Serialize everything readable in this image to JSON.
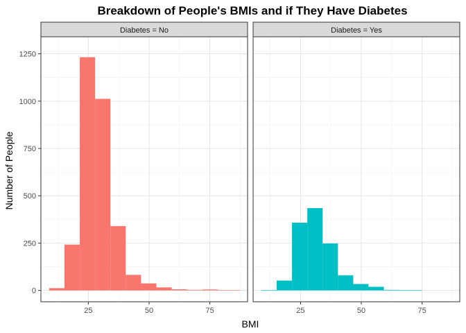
{
  "chart_data": {
    "type": "bar",
    "title": "Breakdown of People's BMIs and if They Have Diabetes",
    "xlabel": "BMI",
    "ylabel": "Number of People",
    "xlim": [
      5.5,
      90.5
    ],
    "ylim": [
      -60,
      1340
    ],
    "x_ticks": [
      25,
      50,
      75
    ],
    "y_ticks": [
      0,
      250,
      500,
      750,
      1000,
      1250
    ],
    "bin_width": 6.3,
    "grid": true,
    "panels": [
      {
        "strip_label": "Diabetes = No",
        "color": "#F8766D",
        "bins": [
          {
            "x0": 8.9,
            "x1": 15.2,
            "count": 12
          },
          {
            "x0": 15.2,
            "x1": 21.5,
            "count": 242
          },
          {
            "x0": 21.5,
            "x1": 27.8,
            "count": 1232
          },
          {
            "x0": 27.8,
            "x1": 34.1,
            "count": 1012
          },
          {
            "x0": 34.1,
            "x1": 40.4,
            "count": 340
          },
          {
            "x0": 40.4,
            "x1": 46.7,
            "count": 82
          },
          {
            "x0": 46.7,
            "x1": 53.0,
            "count": 37
          },
          {
            "x0": 53.0,
            "x1": 59.3,
            "count": 16
          },
          {
            "x0": 59.3,
            "x1": 65.6,
            "count": 6
          },
          {
            "x0": 65.6,
            "x1": 71.9,
            "count": 3
          },
          {
            "x0": 71.9,
            "x1": 78.2,
            "count": 5
          },
          {
            "x0": 78.2,
            "x1": 84.5,
            "count": 2
          },
          {
            "x0": 84.5,
            "x1": 87.5,
            "count": 1
          }
        ]
      },
      {
        "strip_label": "Diabetes = Yes",
        "color": "#00BFC4",
        "bins": [
          {
            "x0": 8.9,
            "x1": 15.2,
            "count": 2
          },
          {
            "x0": 15.2,
            "x1": 21.5,
            "count": 52
          },
          {
            "x0": 21.5,
            "x1": 27.8,
            "count": 358
          },
          {
            "x0": 27.8,
            "x1": 34.1,
            "count": 435
          },
          {
            "x0": 34.1,
            "x1": 40.4,
            "count": 248
          },
          {
            "x0": 40.4,
            "x1": 46.7,
            "count": 80
          },
          {
            "x0": 46.7,
            "x1": 53.0,
            "count": 34
          },
          {
            "x0": 53.0,
            "x1": 59.3,
            "count": 19
          },
          {
            "x0": 59.3,
            "x1": 65.6,
            "count": 3
          },
          {
            "x0": 65.6,
            "x1": 71.9,
            "count": 2
          },
          {
            "x0": 71.9,
            "x1": 75.0,
            "count": 1
          }
        ]
      }
    ]
  }
}
